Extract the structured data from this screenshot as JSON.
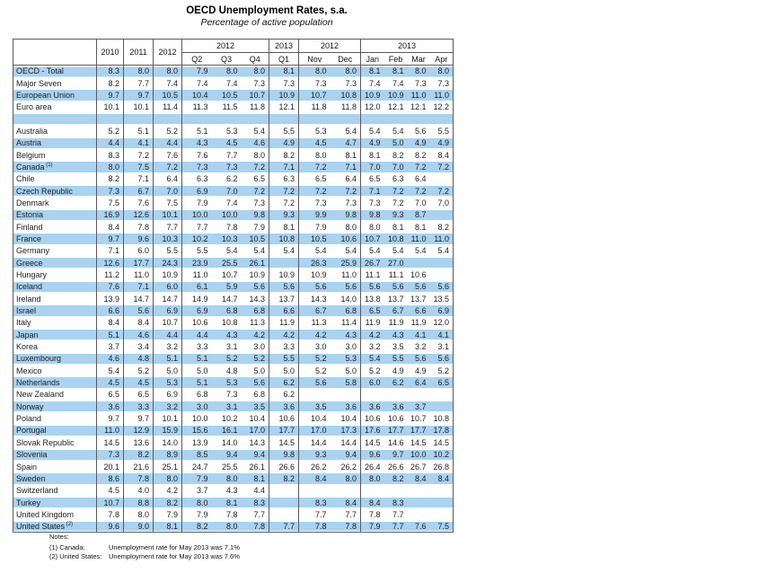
{
  "title": "OECD Unemployment Rates, s.a.",
  "subtitle": "Percentage of active population",
  "colors": {
    "band_blue": "#aad2f1",
    "border": "#5a5a5a",
    "background": "#ffffff"
  },
  "table": {
    "header": {
      "years": [
        "2010",
        "2011",
        "2012"
      ],
      "groups": [
        {
          "label": "2012",
          "span": 3
        },
        {
          "label": "2013",
          "span": 1
        },
        {
          "label": "2012",
          "span": 2
        },
        {
          "label": "2013",
          "span": 4
        }
      ],
      "periods": [
        "Q2",
        "Q3",
        "Q4",
        "Q1",
        "Nov",
        "Dec",
        "Jan",
        "Feb",
        "Mar",
        "Apr"
      ]
    },
    "aggregate_rows": [
      {
        "label": "OECD - Total",
        "sup": "",
        "values": [
          "8.3",
          "8.0",
          "8.0",
          "7.9",
          "8.0",
          "8.0",
          "8.1",
          "8.0",
          "8.0",
          "8.1",
          "8.1",
          "8.0",
          "8.0"
        ]
      },
      {
        "label": "Major Seven",
        "sup": "",
        "values": [
          "8.2",
          "7.7",
          "7.4",
          "7.4",
          "7.4",
          "7.3",
          "7.3",
          "7.3",
          "7.3",
          "7.4",
          "7.4",
          "7.3",
          "7.3"
        ]
      },
      {
        "label": "European Union",
        "sup": "",
        "values": [
          "9.7",
          "9.7",
          "10.5",
          "10.4",
          "10.5",
          "10.7",
          "10.9",
          "10.7",
          "10.8",
          "10.9",
          "10.9",
          "11.0",
          "11.0"
        ]
      },
      {
        "label": "Euro area",
        "sup": "",
        "values": [
          "10.1",
          "10.1",
          "11.4",
          "11.3",
          "11.5",
          "11.8",
          "12.1",
          "11.8",
          "11.8",
          "12.0",
          "12.1",
          "12.1",
          "12.2"
        ]
      }
    ],
    "country_rows": [
      {
        "label": "Australia",
        "sup": "",
        "values": [
          "5.2",
          "5.1",
          "5.2",
          "5.1",
          "5.3",
          "5.4",
          "5.5",
          "5.3",
          "5.4",
          "5.4",
          "5.4",
          "5.6",
          "5.5"
        ]
      },
      {
        "label": "Austria",
        "sup": "",
        "values": [
          "4.4",
          "4.1",
          "4.4",
          "4.3",
          "4.5",
          "4.6",
          "4.9",
          "4.5",
          "4.7",
          "4.9",
          "5.0",
          "4.9",
          "4.9"
        ]
      },
      {
        "label": "Belgium",
        "sup": "",
        "values": [
          "8.3",
          "7.2",
          "7.6",
          "7.6",
          "7.7",
          "8.0",
          "8.2",
          "8.0",
          "8.1",
          "8.1",
          "8.2",
          "8.2",
          "8.4"
        ]
      },
      {
        "label": "Canada",
        "sup": "(1)",
        "values": [
          "8.0",
          "7.5",
          "7.2",
          "7.3",
          "7.3",
          "7.2",
          "7.1",
          "7.2",
          "7.1",
          "7.0",
          "7.0",
          "7.2",
          "7.2"
        ]
      },
      {
        "label": "Chile",
        "sup": "",
        "values": [
          "8.2",
          "7.1",
          "6.4",
          "6.3",
          "6.2",
          "6.5",
          "6.3",
          "6.5",
          "6.4",
          "6.5",
          "6.3",
          "6.4",
          ""
        ]
      },
      {
        "label": "Czech Republic",
        "sup": "",
        "values": [
          "7.3",
          "6.7",
          "7.0",
          "6.9",
          "7.0",
          "7.2",
          "7.2",
          "7.2",
          "7.2",
          "7.1",
          "7.2",
          "7.2",
          "7.2"
        ]
      },
      {
        "label": "Denmark",
        "sup": "",
        "values": [
          "7.5",
          "7.6",
          "7.5",
          "7.9",
          "7.4",
          "7.3",
          "7.2",
          "7.3",
          "7.3",
          "7.3",
          "7.2",
          "7.0",
          "7.0"
        ]
      },
      {
        "label": "Estonia",
        "sup": "",
        "values": [
          "16.9",
          "12.6",
          "10.1",
          "10.0",
          "10.0",
          "9.8",
          "9.3",
          "9.9",
          "9.8",
          "9.8",
          "9.3",
          "8.7",
          ""
        ]
      },
      {
        "label": "Finland",
        "sup": "",
        "values": [
          "8.4",
          "7.8",
          "7.7",
          "7.7",
          "7.8",
          "7.9",
          "8.1",
          "7.9",
          "8.0",
          "8.0",
          "8.1",
          "8.1",
          "8.2"
        ]
      },
      {
        "label": "France",
        "sup": "",
        "values": [
          "9.7",
          "9.6",
          "10.3",
          "10.2",
          "10.3",
          "10.5",
          "10.8",
          "10.5",
          "10.6",
          "10.7",
          "10.8",
          "11.0",
          "11.0"
        ]
      },
      {
        "label": "Germany",
        "sup": "",
        "values": [
          "7.1",
          "6.0",
          "5.5",
          "5.5",
          "5.4",
          "5.4",
          "5.4",
          "5.4",
          "5.4",
          "5.4",
          "5.4",
          "5.4",
          "5.4"
        ]
      },
      {
        "label": "Greece",
        "sup": "",
        "values": [
          "12.6",
          "17.7",
          "24.3",
          "23.9",
          "25.5",
          "26.1",
          "",
          "26.3",
          "25.9",
          "26.7",
          "27.0",
          "",
          ""
        ]
      },
      {
        "label": "Hungary",
        "sup": "",
        "values": [
          "11.2",
          "11.0",
          "10.9",
          "11.0",
          "10.7",
          "10.9",
          "10.9",
          "10.9",
          "11.0",
          "11.1",
          "11.1",
          "10.6",
          ""
        ]
      },
      {
        "label": "Iceland",
        "sup": "",
        "values": [
          "7.6",
          "7.1",
          "6.0",
          "6.1",
          "5.9",
          "5.6",
          "5.6",
          "5.6",
          "5.6",
          "5.6",
          "5.6",
          "5.6",
          "5.6"
        ]
      },
      {
        "label": "Ireland",
        "sup": "",
        "values": [
          "13.9",
          "14.7",
          "14.7",
          "14.9",
          "14.7",
          "14.3",
          "13.7",
          "14.3",
          "14.0",
          "13.8",
          "13.7",
          "13.7",
          "13.5"
        ]
      },
      {
        "label": "Israel",
        "sup": "",
        "values": [
          "6.6",
          "5.6",
          "6.9",
          "6.9",
          "6.8",
          "6.8",
          "6.6",
          "6.7",
          "6.8",
          "6.5",
          "6.7",
          "6.6",
          "6.9"
        ]
      },
      {
        "label": "Italy",
        "sup": "",
        "values": [
          "8.4",
          "8.4",
          "10.7",
          "10.6",
          "10.8",
          "11.3",
          "11.9",
          "11.3",
          "11.4",
          "11.9",
          "11.9",
          "11.9",
          "12.0"
        ]
      },
      {
        "label": "Japan",
        "sup": "",
        "values": [
          "5.1",
          "4.6",
          "4.4",
          "4.4",
          "4.3",
          "4.2",
          "4.2",
          "4.2",
          "4.3",
          "4.2",
          "4.3",
          "4.1",
          "4.1"
        ]
      },
      {
        "label": "Korea",
        "sup": "",
        "values": [
          "3.7",
          "3.4",
          "3.2",
          "3.3",
          "3.1",
          "3.0",
          "3.3",
          "3.0",
          "3.0",
          "3.2",
          "3.5",
          "3.2",
          "3.1"
        ]
      },
      {
        "label": "Luxembourg",
        "sup": "",
        "values": [
          "4.6",
          "4.8",
          "5.1",
          "5.1",
          "5.2",
          "5.2",
          "5.5",
          "5.2",
          "5.3",
          "5.4",
          "5.5",
          "5.6",
          "5.6"
        ]
      },
      {
        "label": "Mexico",
        "sup": "",
        "values": [
          "5.4",
          "5.2",
          "5.0",
          "5.0",
          "4.8",
          "5.0",
          "5.0",
          "5.2",
          "5.0",
          "5.2",
          "4.9",
          "4.9",
          "5.2"
        ]
      },
      {
        "label": "Netherlands",
        "sup": "",
        "values": [
          "4.5",
          "4.5",
          "5.3",
          "5.1",
          "5.3",
          "5.6",
          "6.2",
          "5.6",
          "5.8",
          "6.0",
          "6.2",
          "6.4",
          "6.5"
        ]
      },
      {
        "label": "New Zealand",
        "sup": "",
        "values": [
          "6.5",
          "6.5",
          "6.9",
          "6.8",
          "7.3",
          "6.8",
          "6.2",
          "",
          "",
          "",
          "",
          "",
          ""
        ]
      },
      {
        "label": "Norway",
        "sup": "",
        "values": [
          "3.6",
          "3.3",
          "3.2",
          "3.0",
          "3.1",
          "3.5",
          "3.6",
          "3.5",
          "3.6",
          "3.6",
          "3.6",
          "3.7",
          ""
        ]
      },
      {
        "label": "Poland",
        "sup": "",
        "values": [
          "9.7",
          "9.7",
          "10.1",
          "10.0",
          "10.2",
          "10.4",
          "10.6",
          "10.4",
          "10.4",
          "10.6",
          "10.6",
          "10.7",
          "10.8"
        ]
      },
      {
        "label": "Portugal",
        "sup": "",
        "values": [
          "11.0",
          "12.9",
          "15.9",
          "15.6",
          "16.1",
          "17.0",
          "17.7",
          "17.0",
          "17.3",
          "17.6",
          "17.7",
          "17.7",
          "17.8"
        ]
      },
      {
        "label": "Slovak Republic",
        "sup": "",
        "values": [
          "14.5",
          "13.6",
          "14.0",
          "13.9",
          "14.0",
          "14.3",
          "14.5",
          "14.4",
          "14.4",
          "14.5",
          "14.6",
          "14.5",
          "14.5"
        ]
      },
      {
        "label": "Slovenia",
        "sup": "",
        "values": [
          "7.3",
          "8.2",
          "8.9",
          "8.5",
          "9.4",
          "9.4",
          "9.8",
          "9.3",
          "9.4",
          "9.6",
          "9.7",
          "10.0",
          "10.2"
        ]
      },
      {
        "label": "Spain",
        "sup": "",
        "values": [
          "20.1",
          "21.6",
          "25.1",
          "24.7",
          "25.5",
          "26.1",
          "26.6",
          "26.2",
          "26.2",
          "26.4",
          "26.6",
          "26.7",
          "26.8"
        ]
      },
      {
        "label": "Sweden",
        "sup": "",
        "values": [
          "8.6",
          "7.8",
          "8.0",
          "7.9",
          "8.0",
          "8.1",
          "8.2",
          "8.4",
          "8.0",
          "8.0",
          "8.2",
          "8.4",
          "8.4"
        ]
      },
      {
        "label": "Switzerland",
        "sup": "",
        "values": [
          "4.5",
          "4.0",
          "4.2",
          "3.7",
          "4.3",
          "4.4",
          "",
          "",
          "",
          "",
          "",
          "",
          ""
        ]
      },
      {
        "label": "Turkey",
        "sup": "",
        "values": [
          "10.7",
          "8.8",
          "8.2",
          "8.0",
          "8.1",
          "8.3",
          "",
          "8.3",
          "8.4",
          "8.4",
          "8.3",
          "",
          ""
        ]
      },
      {
        "label": "United Kingdom",
        "sup": "",
        "values": [
          "7.8",
          "8.0",
          "7.9",
          "7.9",
          "7.8",
          "7.7",
          "",
          "7.7",
          "7.7",
          "7.8",
          "7.7",
          "",
          ""
        ]
      },
      {
        "label": "United States",
        "sup": "(2)",
        "values": [
          "9.6",
          "9.0",
          "8.1",
          "8.2",
          "8.0",
          "7.8",
          "7.7",
          "7.8",
          "7.8",
          "7.9",
          "7.7",
          "7.6",
          "7.5"
        ]
      }
    ]
  },
  "notes": {
    "heading": "Notes:",
    "items": [
      {
        "label": "(1) Canada:",
        "text": "Unemployment rate for May 2013 was 7.1%"
      },
      {
        "label": "(2) United States:",
        "text": "Unemployment rate for May 2013 was 7.6%"
      }
    ]
  }
}
